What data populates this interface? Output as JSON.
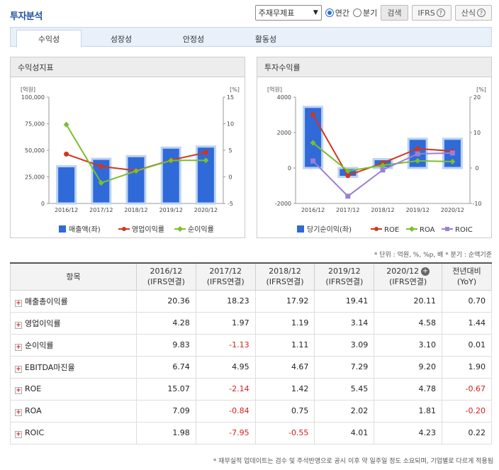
{
  "page": {
    "title": "투자분석",
    "select_value": "주재무제표",
    "radio_annual": "연간",
    "radio_quarter": "분기",
    "search_button": "검색",
    "ifrs_button": "IFRS",
    "formula_button": "산식",
    "help_glyph": "?"
  },
  "tabs": [
    "수익성",
    "성장성",
    "안정성",
    "활동성"
  ],
  "colors": {
    "bar": "#2f6ad8",
    "red": "#d1361f",
    "green": "#7cbf2c",
    "purple": "#9b7fd6",
    "title": "#1d4f9c"
  },
  "charts": {
    "left": {
      "title": "수익성지표",
      "left_unit": "[억원]",
      "right_unit": "[%]"
    },
    "right": {
      "title": "투자수익률",
      "left_unit": "[억원]",
      "right_unit": "[%]"
    }
  },
  "chart_data": [
    {
      "type": "bar",
      "title": "수익성지표",
      "categories": [
        "2016/12",
        "2017/12",
        "2018/12",
        "2019/12",
        "2020/12"
      ],
      "y_left": {
        "min": 0,
        "max": 100000,
        "ticks": [
          "0",
          "25,000",
          "50,000",
          "75,000",
          "100,000"
        ]
      },
      "y_right": {
        "min": -5,
        "max": 15,
        "ticks": [
          "-5",
          "0",
          "5",
          "10",
          "15"
        ]
      },
      "series": [
        {
          "name": "매출액(좌)",
          "kind": "bar",
          "axis": "left",
          "values": [
            35000,
            42000,
            44500,
            52500,
            53500
          ]
        },
        {
          "name": "영업이익률",
          "kind": "line",
          "axis": "right",
          "values": [
            4.28,
            1.97,
            1.19,
            3.14,
            4.58
          ]
        },
        {
          "name": "순이익률",
          "kind": "line",
          "axis": "right",
          "values": [
            9.83,
            -1.13,
            1.11,
            3.09,
            3.1
          ]
        }
      ],
      "legend": "bottom"
    },
    {
      "type": "bar",
      "title": "투자수익률",
      "categories": [
        "2016/12",
        "2017/12",
        "2018/12",
        "2019/12",
        "2020/12"
      ],
      "y_left": {
        "min": -2000,
        "max": 4000,
        "ticks": [
          "-2000",
          "0",
          "2000",
          "4000"
        ]
      },
      "y_right": {
        "min": -10,
        "max": 20,
        "ticks": [
          "-10",
          "0",
          "10",
          "20"
        ]
      },
      "series": [
        {
          "name": "당기순이익(좌)",
          "kind": "bar",
          "axis": "left",
          "values": [
            3450,
            -500,
            500,
            1650,
            1650
          ]
        },
        {
          "name": "ROE",
          "kind": "line",
          "axis": "right",
          "values": [
            15.07,
            -2.14,
            1.42,
            5.45,
            4.78
          ]
        },
        {
          "name": "ROA",
          "kind": "line",
          "axis": "right",
          "values": [
            7.09,
            -0.84,
            0.75,
            2.02,
            1.81
          ]
        },
        {
          "name": "ROIC",
          "kind": "line",
          "axis": "right",
          "values": [
            1.98,
            -7.95,
            -0.55,
            4.01,
            4.23
          ]
        }
      ],
      "legend": "bottom"
    }
  ],
  "note": "* 단위 : 억원, %, %p, 배   * 분기 : 순액기준",
  "table": {
    "header_item": "항목",
    "columns": [
      {
        "top": "2016/12",
        "bottom": "(IFRS연결)"
      },
      {
        "top": "2017/12",
        "bottom": "(IFRS연결)"
      },
      {
        "top": "2018/12",
        "bottom": "(IFRS연결)"
      },
      {
        "top": "2019/12",
        "bottom": "(IFRS연결)"
      },
      {
        "top": "2020/12",
        "bottom": "(IFRS연결)"
      },
      {
        "top": "전년대비",
        "bottom": "(YoY)"
      }
    ],
    "rows": [
      {
        "label": "매출총이익률",
        "values": [
          "20.36",
          "18.23",
          "17.92",
          "19.41",
          "20.11",
          "0.70"
        ]
      },
      {
        "label": "영업이익률",
        "values": [
          "4.28",
          "1.97",
          "1.19",
          "3.14",
          "4.58",
          "1.44"
        ]
      },
      {
        "label": "순이익률",
        "values": [
          "9.83",
          "-1.13",
          "1.11",
          "3.09",
          "3.10",
          "0.01"
        ]
      },
      {
        "label": "EBITDA마진율",
        "values": [
          "6.74",
          "4.95",
          "4.67",
          "7.29",
          "9.20",
          "1.90"
        ]
      },
      {
        "label": "ROE",
        "values": [
          "15.07",
          "-2.14",
          "1.42",
          "5.45",
          "4.78",
          "-0.67"
        ]
      },
      {
        "label": "ROA",
        "values": [
          "7.09",
          "-0.84",
          "0.75",
          "2.02",
          "1.81",
          "-0.20"
        ]
      },
      {
        "label": "ROIC",
        "values": [
          "1.98",
          "-7.95",
          "-0.55",
          "4.01",
          "4.23",
          "0.22"
        ]
      }
    ]
  },
  "footer": "* 재무실적 업데이트는 검수 및 주석반영으로 공시 이후 약 일주일 정도 소요되며, 기업별로 다르게 적용됨"
}
